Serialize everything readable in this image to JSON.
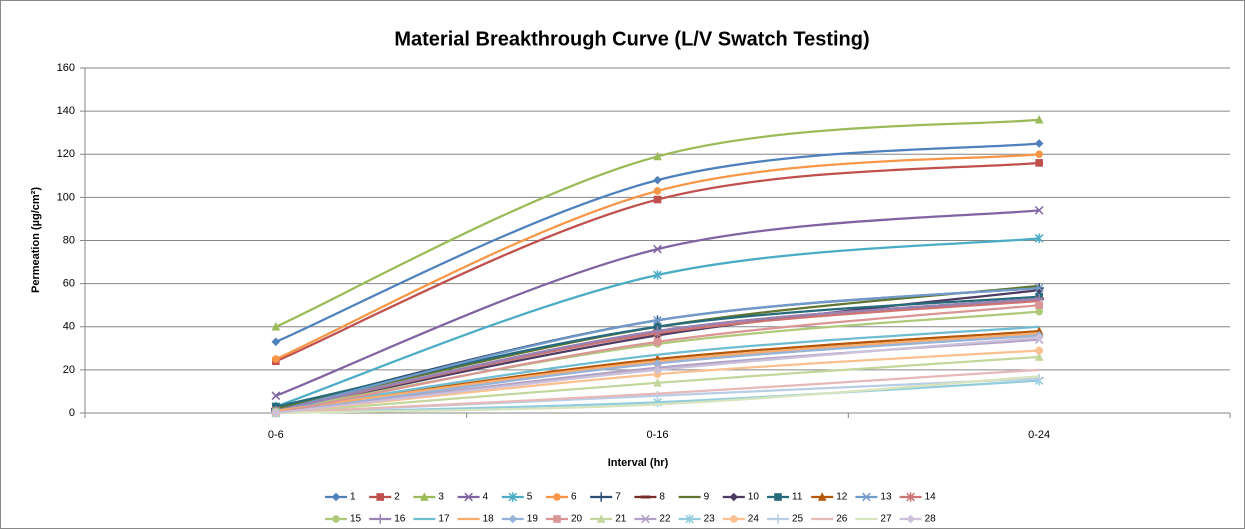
{
  "chart_data": {
    "type": "line",
    "title": "Material Breakthrough Curve (L/V Swatch Testing)",
    "x_label": "Interval (hr)",
    "y_label": "Permeation (µg/cm²)",
    "categories": [
      "0-6",
      "0-16",
      "0-24"
    ],
    "ylim": [
      0,
      160
    ],
    "yticks": [
      0,
      20,
      40,
      60,
      80,
      100,
      120,
      140,
      160
    ],
    "grid": true,
    "smooth": true,
    "legend": "bottom",
    "series": [
      {
        "name": "1",
        "color": "#4F81BD",
        "marker": "diamond",
        "values": [
          33,
          108,
          125
        ]
      },
      {
        "name": "2",
        "color": "#C0504D",
        "marker": "square",
        "values": [
          24,
          99,
          116
        ]
      },
      {
        "name": "3",
        "color": "#9BBB59",
        "marker": "triangle",
        "values": [
          40,
          119,
          136
        ]
      },
      {
        "name": "4",
        "color": "#8064A2",
        "marker": "x",
        "values": [
          8,
          76,
          94
        ]
      },
      {
        "name": "5",
        "color": "#4BACC6",
        "marker": "star",
        "values": [
          3,
          64,
          81
        ]
      },
      {
        "name": "6",
        "color": "#F79646",
        "marker": "circle",
        "values": [
          25,
          103,
          120
        ]
      },
      {
        "name": "7",
        "color": "#2C4D75",
        "marker": "plus",
        "values": [
          2,
          43,
          58
        ]
      },
      {
        "name": "8",
        "color": "#772C2A",
        "marker": "dash",
        "values": [
          1,
          38,
          53
        ]
      },
      {
        "name": "9",
        "color": "#5F7530",
        "marker": "none",
        "values": [
          2,
          40,
          59
        ]
      },
      {
        "name": "10",
        "color": "#4D3B62",
        "marker": "diamond",
        "values": [
          1,
          36,
          57
        ]
      },
      {
        "name": "11",
        "color": "#276A7C",
        "marker": "square",
        "values": [
          3,
          40,
          54
        ]
      },
      {
        "name": "12",
        "color": "#B65708",
        "marker": "triangle",
        "values": [
          1,
          25,
          38
        ]
      },
      {
        "name": "13",
        "color": "#729ACA",
        "marker": "x",
        "values": [
          1,
          43,
          58
        ]
      },
      {
        "name": "14",
        "color": "#CD7371",
        "marker": "star",
        "values": [
          1,
          37,
          52
        ]
      },
      {
        "name": "15",
        "color": "#AFC97A",
        "marker": "circle",
        "values": [
          1,
          32,
          47
        ]
      },
      {
        "name": "16",
        "color": "#9983B5",
        "marker": "plus",
        "values": [
          1,
          38,
          53
        ]
      },
      {
        "name": "17",
        "color": "#6FBDD1",
        "marker": "none",
        "values": [
          1,
          27,
          40
        ]
      },
      {
        "name": "18",
        "color": "#F9AB6B",
        "marker": "none",
        "values": [
          1,
          24,
          37
        ]
      },
      {
        "name": "19",
        "color": "#95B3D7",
        "marker": "diamond",
        "values": [
          0,
          23,
          36
        ]
      },
      {
        "name": "20",
        "color": "#D99694",
        "marker": "square",
        "values": [
          0,
          33,
          50
        ]
      },
      {
        "name": "21",
        "color": "#C3D69B",
        "marker": "triangle",
        "values": [
          0,
          14,
          26
        ]
      },
      {
        "name": "22",
        "color": "#B3A2C7",
        "marker": "x",
        "values": [
          0,
          21,
          34
        ]
      },
      {
        "name": "23",
        "color": "#93CDDD",
        "marker": "star",
        "values": [
          0,
          5,
          15
        ]
      },
      {
        "name": "24",
        "color": "#FAC090",
        "marker": "circle",
        "values": [
          0,
          18,
          29
        ]
      },
      {
        "name": "25",
        "color": "#B9CDE5",
        "marker": "plus",
        "values": [
          0,
          8,
          16
        ]
      },
      {
        "name": "26",
        "color": "#E6B9B8",
        "marker": "none",
        "values": [
          0,
          9,
          20
        ]
      },
      {
        "name": "27",
        "color": "#D7E4BD",
        "marker": "none",
        "values": [
          0,
          4,
          17
        ]
      },
      {
        "name": "28",
        "color": "#CCC1DA",
        "marker": "diamond",
        "values": [
          0,
          20,
          35
        ]
      }
    ]
  }
}
